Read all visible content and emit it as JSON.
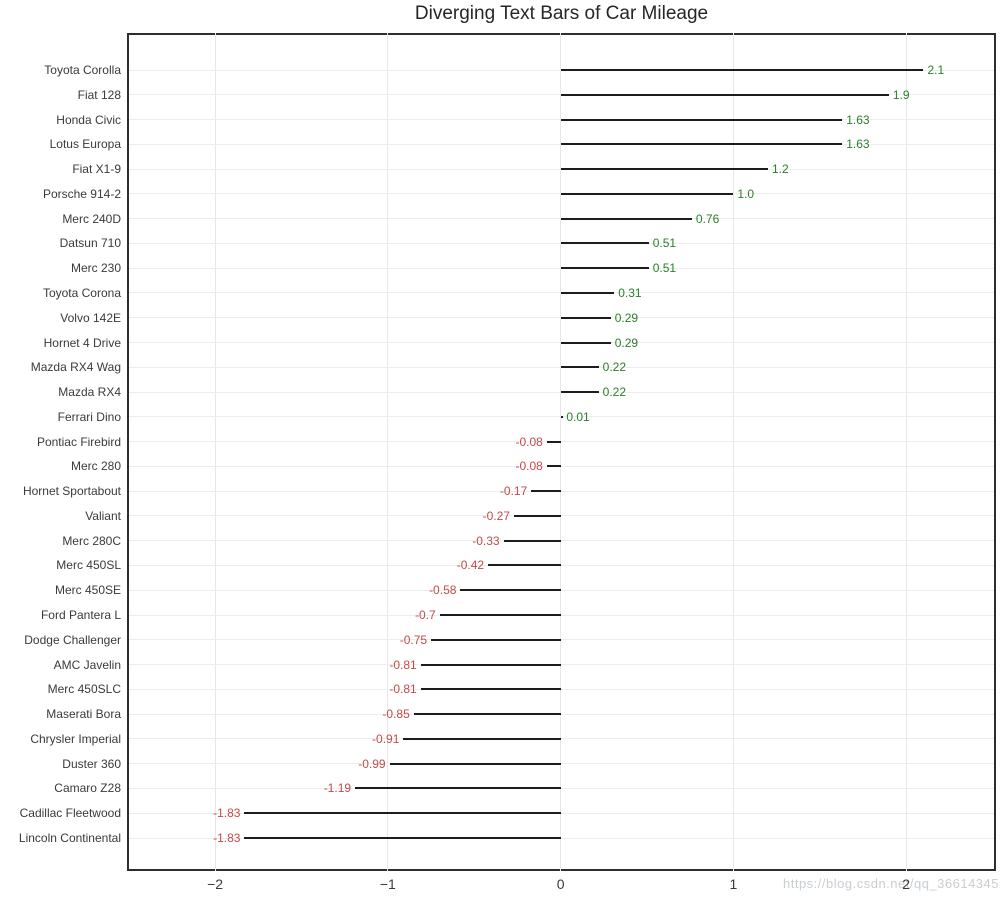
{
  "figure": {
    "title": "Diverging Text Bars of Car Mileage",
    "watermark": "https://blog.csdn.net/qq_36614345"
  },
  "chart_data": {
    "type": "bar",
    "subtype": "diverging-horizontal-text-bars",
    "title": "Diverging Text Bars of Car Mileage",
    "xlabel": "",
    "ylabel": "",
    "xlim": [
      -2.51,
      2.52
    ],
    "xtick_values": [
      -2,
      -1,
      0,
      1,
      2
    ],
    "xtick_labels": [
      "−2",
      "−1",
      "0",
      "1",
      "2"
    ],
    "grid": true,
    "legend_position": "none",
    "bar_line_color": "#1c1c1c",
    "positive_text_color": "#2a7e2a",
    "negative_text_color": "#c44a4a",
    "categories": [
      "Toyota Corolla",
      "Fiat 128",
      "Honda Civic",
      "Lotus Europa",
      "Fiat X1-9",
      "Porsche 914-2",
      "Merc 240D",
      "Datsun 710",
      "Merc 230",
      "Toyota Corona",
      "Volvo 142E",
      "Hornet 4 Drive",
      "Mazda RX4 Wag",
      "Mazda RX4",
      "Ferrari Dino",
      "Pontiac Firebird",
      "Merc 280",
      "Hornet Sportabout",
      "Valiant",
      "Merc 280C",
      "Merc 450SL",
      "Merc 450SE",
      "Ford Pantera L",
      "Dodge Challenger",
      "AMC Javelin",
      "Merc 450SLC",
      "Maserati Bora",
      "Chrysler Imperial",
      "Duster 360",
      "Camaro Z28",
      "Cadillac Fleetwood",
      "Lincoln Continental"
    ],
    "values": [
      2.1,
      1.9,
      1.63,
      1.63,
      1.2,
      1.0,
      0.76,
      0.51,
      0.51,
      0.31,
      0.29,
      0.29,
      0.22,
      0.22,
      0.01,
      -0.08,
      -0.08,
      -0.17,
      -0.27,
      -0.33,
      -0.42,
      -0.58,
      -0.7,
      -0.75,
      -0.81,
      -0.81,
      -0.85,
      -0.91,
      -0.99,
      -1.19,
      -1.83,
      -1.83
    ],
    "value_labels": [
      "2.1",
      "1.9",
      "1.63",
      "1.63",
      "1.2",
      "1.0",
      "0.76",
      "0.51",
      "0.51",
      "0.31",
      "0.29",
      "0.29",
      "0.22",
      "0.22",
      "0.01",
      "-0.08",
      "-0.08",
      "-0.17",
      "-0.27",
      "-0.33",
      "-0.42",
      "-0.58",
      "-0.7",
      "-0.75",
      "-0.81",
      "-0.81",
      "-0.85",
      "-0.91",
      "-0.99",
      "-1.19",
      "-1.83",
      "-1.83"
    ]
  }
}
